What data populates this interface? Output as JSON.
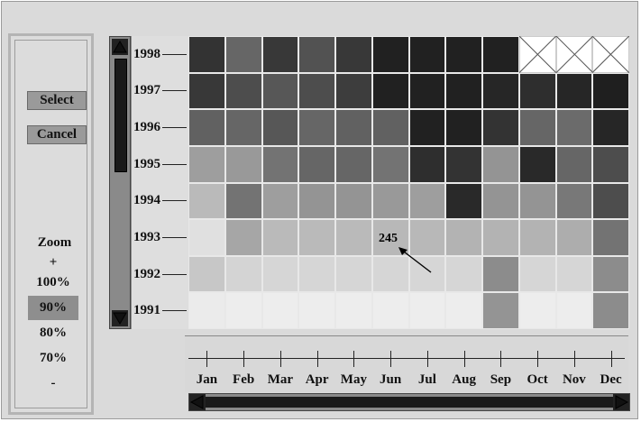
{
  "controls": {
    "select_label": "Select",
    "cancel_label": "Cancel",
    "zoom_label": "Zoom",
    "zoom_in_label": "+",
    "zoom_out_label": "-",
    "zoom_options": [
      "100%",
      "90%",
      "80%",
      "70%"
    ],
    "zoom_selected": "90%"
  },
  "annotation": {
    "value": "245",
    "year": "1993",
    "month": "Jul"
  },
  "chart_data": {
    "type": "heatmap",
    "years": [
      "1998",
      "1997",
      "1996",
      "1995",
      "1994",
      "1993",
      "1992",
      "1991"
    ],
    "months": [
      "Jan",
      "Feb",
      "Mar",
      "Apr",
      "May",
      "Jun",
      "Jul",
      "Aug",
      "Sep",
      "Oct",
      "Nov",
      "Dec"
    ],
    "grey_levels": [
      [
        0.2,
        0.4,
        0.22,
        0.32,
        0.22,
        0.13,
        0.13,
        0.13,
        0.13,
        null,
        null,
        null
      ],
      [
        0.22,
        0.3,
        0.34,
        0.3,
        0.24,
        0.13,
        0.13,
        0.13,
        0.15,
        0.18,
        0.15,
        0.12
      ],
      [
        0.38,
        0.4,
        0.34,
        0.4,
        0.38,
        0.38,
        0.13,
        0.13,
        0.2,
        0.4,
        0.42,
        0.15
      ],
      [
        0.62,
        0.6,
        0.45,
        0.4,
        0.4,
        0.45,
        0.18,
        0.2,
        0.58,
        0.16,
        0.4,
        0.3
      ],
      [
        0.73,
        0.45,
        0.62,
        0.58,
        0.58,
        0.6,
        0.62,
        0.16,
        0.58,
        0.58,
        0.47,
        0.3
      ],
      [
        0.88,
        0.65,
        0.73,
        0.73,
        0.73,
        0.72,
        0.72,
        0.7,
        0.7,
        0.7,
        0.68,
        0.45
      ],
      [
        0.78,
        0.83,
        0.84,
        0.84,
        0.84,
        0.84,
        0.84,
        0.84,
        0.55,
        0.84,
        0.84,
        0.55
      ],
      [
        0.92,
        0.93,
        0.93,
        0.93,
        0.93,
        0.93,
        0.93,
        0.93,
        0.58,
        0.93,
        0.93,
        0.55
      ]
    ]
  }
}
